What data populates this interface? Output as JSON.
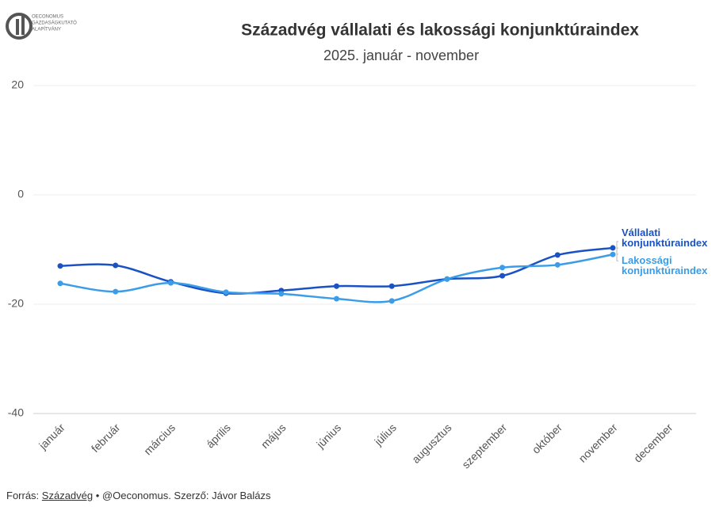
{
  "logo": [
    "OECONOMUS",
    "GAZDASÁGKUTATÓ",
    "ALAPÍTVÁNY"
  ],
  "footer": {
    "label": "Forrás:",
    "source": "Századvég",
    "rest": "• @Oeconomus. Szerző: Jávor Balázs"
  },
  "chart_data": {
    "type": "line",
    "title": "Századvég vállalati és lakossági konjunktúraindex",
    "subtitle": "2025. január - november",
    "categories": [
      "január",
      "február",
      "március",
      "április",
      "május",
      "június",
      "július",
      "augusztus",
      "szeptember",
      "október",
      "november",
      "december"
    ],
    "series": [
      {
        "name": "Vállalati konjunktúraindex",
        "color": "#1a52c4",
        "values": [
          -13.0,
          -12.9,
          -15.9,
          -18.0,
          -17.5,
          -16.7,
          -16.7,
          -15.4,
          -14.8,
          -11.0,
          -9.7,
          null
        ]
      },
      {
        "name": "Lakossági konjunktúraindex",
        "color": "#3b9de8",
        "values": [
          -16.2,
          -17.7,
          -16.1,
          -17.8,
          -18.1,
          -19.0,
          -19.4,
          -15.4,
          -13.3,
          -12.8,
          -10.9,
          null
        ]
      }
    ],
    "ylim": [
      -40,
      20
    ],
    "yticks": [
      -40,
      -20,
      0,
      20
    ],
    "grid": true
  }
}
